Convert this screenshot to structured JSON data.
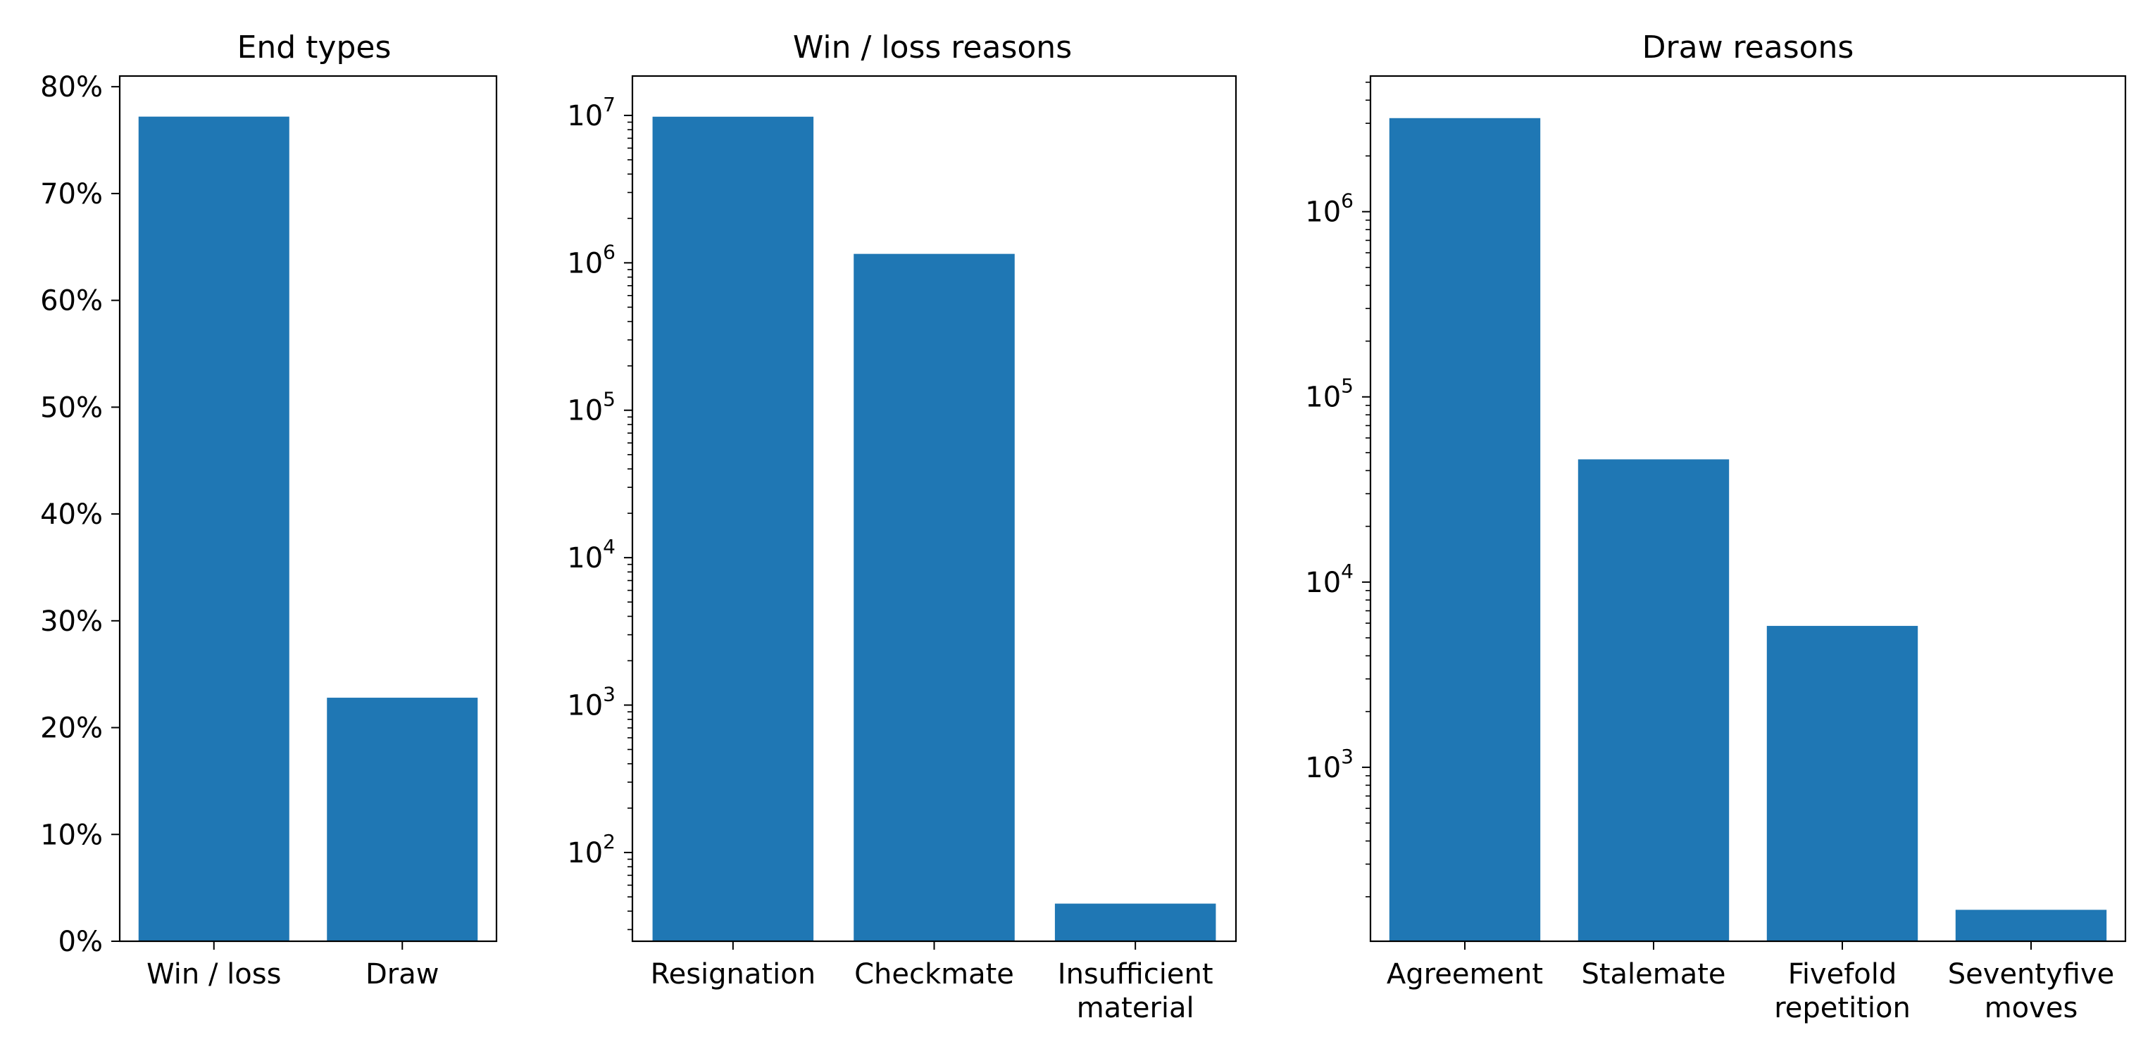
{
  "colors": {
    "bar": "#1f77b4",
    "axis": "#000000",
    "background": "#ffffff"
  },
  "chart_data": [
    {
      "type": "bar",
      "title": "End types",
      "xlabel": "",
      "ylabel": "",
      "yscale": "linear",
      "ylim": [
        0,
        0.81
      ],
      "categories": [
        "Win / loss",
        "Draw"
      ],
      "values": [
        0.772,
        0.228
      ],
      "yticks": [
        {
          "value": 0.0,
          "label": "0%"
        },
        {
          "value": 0.1,
          "label": "10%"
        },
        {
          "value": 0.2,
          "label": "20%"
        },
        {
          "value": 0.3,
          "label": "30%"
        },
        {
          "value": 0.4,
          "label": "40%"
        },
        {
          "value": 0.5,
          "label": "50%"
        },
        {
          "value": 0.6,
          "label": "60%"
        },
        {
          "value": 0.7,
          "label": "70%"
        },
        {
          "value": 0.8,
          "label": "80%"
        }
      ],
      "grid": false,
      "legend": "none"
    },
    {
      "type": "bar",
      "title": "Win / loss reasons",
      "xlabel": "",
      "ylabel": "",
      "yscale": "log",
      "ylim": [
        25,
        18500000
      ],
      "categories": [
        "Resignation",
        "Checkmate",
        "Insufficient\nmaterial"
      ],
      "values": [
        9800000,
        1150000,
        45
      ],
      "yticks": [
        {
          "value": 100,
          "base": "10",
          "exp": "2"
        },
        {
          "value": 1000,
          "base": "10",
          "exp": "3"
        },
        {
          "value": 10000,
          "base": "10",
          "exp": "4"
        },
        {
          "value": 100000,
          "base": "10",
          "exp": "5"
        },
        {
          "value": 1000000,
          "base": "10",
          "exp": "6"
        },
        {
          "value": 10000000,
          "base": "10",
          "exp": "7"
        }
      ],
      "grid": false,
      "legend": "none"
    },
    {
      "type": "bar",
      "title": "Draw reasons",
      "xlabel": "",
      "ylabel": "",
      "yscale": "log",
      "ylim": [
        115,
        5400000
      ],
      "categories": [
        "Agreement",
        "Stalemate",
        "Fivefold\nrepetition",
        "Seventyfive\nmoves"
      ],
      "values": [
        3200000,
        46000,
        5800,
        170
      ],
      "yticks": [
        {
          "value": 1000,
          "base": "10",
          "exp": "3"
        },
        {
          "value": 10000,
          "base": "10",
          "exp": "4"
        },
        {
          "value": 100000,
          "base": "10",
          "exp": "5"
        },
        {
          "value": 1000000,
          "base": "10",
          "exp": "6"
        }
      ],
      "grid": false,
      "legend": "none"
    }
  ]
}
